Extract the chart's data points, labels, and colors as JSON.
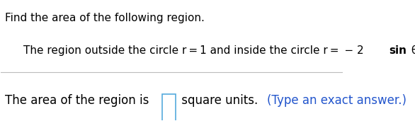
{
  "line1": "Find the area of the following region.",
  "line2_normal": "The region outside the circle r = 1 and inside the circle r =  − 2 ",
  "line2_bold": "sin",
  "line2_end": " θ",
  "line3_prefix": "The area of the region is",
  "line3_suffix_plain": " square units. ",
  "line3_suffix_blue": "(Type an exact answer.)",
  "background_color": "#ffffff",
  "text_color": "#000000",
  "blue_color": "#2255cc",
  "separator_color": "#bbbbbb",
  "box_edge_color": "#55aadd",
  "font_size_line1": 11,
  "font_size_line2": 11,
  "font_size_line3": 12
}
